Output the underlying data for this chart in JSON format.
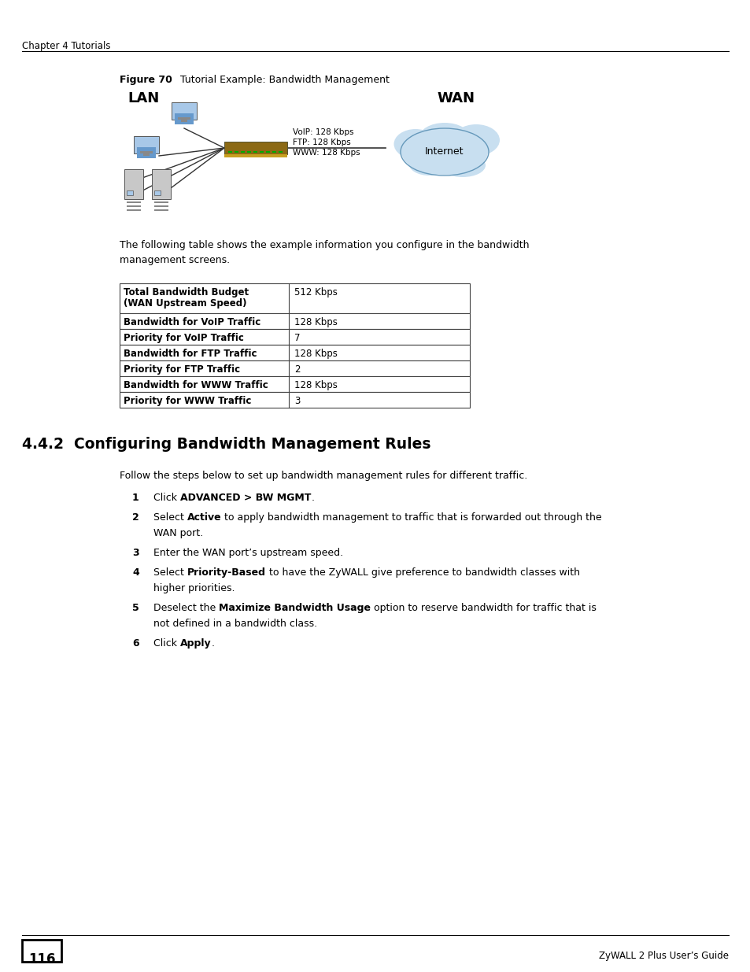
{
  "page_header": "Chapter 4 Tutorials",
  "footer_page": "116",
  "footer_right": "ZyWALL 2 Plus User’s Guide",
  "figure_label": "Figure 70",
  "figure_title": "   Tutorial Example: Bandwidth Management",
  "lan_label": "LAN",
  "wan_label": "WAN",
  "voip_text": "VoIP: 128 Kbps",
  "ftp_text": "FTP: 128 Kbps",
  "www_text": "WWW: 128 Kbps",
  "internet_label": "Internet",
  "intro_text": "The following table shows the example information you configure in the bandwidth\nmanagement screens.",
  "table_rows": [
    [
      "Total Bandwidth Budget\n(WAN Upstream Speed)",
      "512 Kbps"
    ],
    [
      "Bandwidth for VoIP Traffic",
      "128 Kbps"
    ],
    [
      "Priority for VoIP Traffic",
      "7"
    ],
    [
      "Bandwidth for FTP Traffic",
      "128 Kbps"
    ],
    [
      "Priority for FTP Traffic",
      "2"
    ],
    [
      "Bandwidth for WWW Traffic",
      "128 Kbps"
    ],
    [
      "Priority for WWW Traffic",
      "3"
    ]
  ],
  "section_heading": "4.4.2  Configuring Bandwidth Management Rules",
  "follow_text": "Follow the steps below to set up bandwidth management rules for different traffic.",
  "bg_color": "#ffffff",
  "text_color": "#000000",
  "table_border_color": "#555555",
  "header_line_color": "#000000",
  "body_fontsize": 9.0,
  "table_fontsize": 8.5
}
